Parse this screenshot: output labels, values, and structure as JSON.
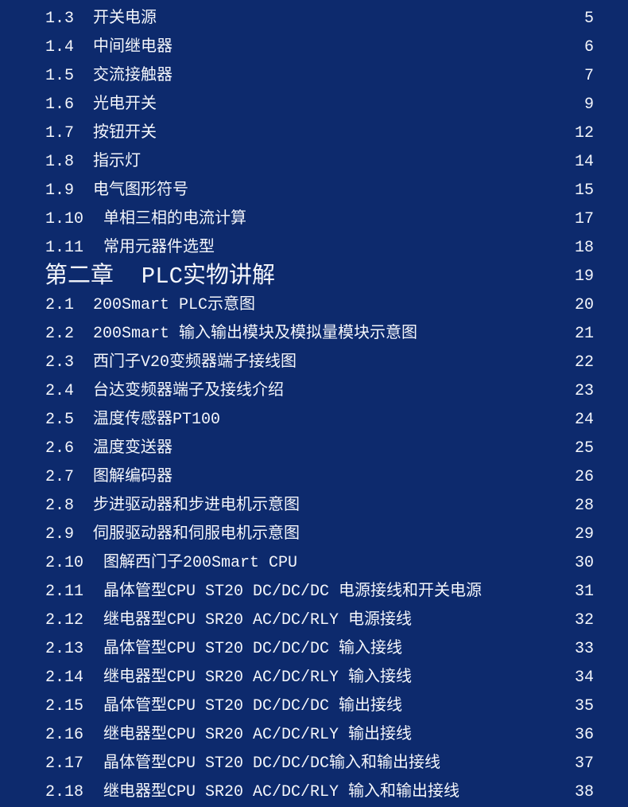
{
  "background_color": "#0d2a6d",
  "text_color": "#f4f6fb",
  "entries": [
    {
      "number": "1.3",
      "title": "开关电源",
      "page": "5"
    },
    {
      "number": "1.4",
      "title": "中间继电器",
      "page": "6"
    },
    {
      "number": "1.5",
      "title": "交流接触器",
      "page": "7"
    },
    {
      "number": "1.6",
      "title": "光电开关",
      "page": "9"
    },
    {
      "number": "1.7",
      "title": "按钮开关",
      "page": "12"
    },
    {
      "number": "1.8",
      "title": "指示灯",
      "page": "14"
    },
    {
      "number": "1.9",
      "title": "电气图形符号",
      "page": "15"
    },
    {
      "number": "1.10",
      "title": "单相三相的电流计算",
      "page": "17"
    },
    {
      "number": "1.11",
      "title": "常用元器件选型",
      "page": "18"
    },
    {
      "number": "第二章  PLC实物讲解",
      "title": "",
      "page": "19",
      "chapter": true
    },
    {
      "number": "2.1",
      "title": "200Smart PLC示意图",
      "page": "20"
    },
    {
      "number": "2.2",
      "title": "200Smart 输入输出模块及模拟量模块示意图",
      "page": "21"
    },
    {
      "number": "2.3",
      "title": "西门子V20变频器端子接线图",
      "page": "22"
    },
    {
      "number": "2.4",
      "title": "台达变频器端子及接线介绍",
      "page": "23"
    },
    {
      "number": "2.5",
      "title": "温度传感器PT100",
      "page": "24"
    },
    {
      "number": "2.6",
      "title": "温度变送器",
      "page": "25"
    },
    {
      "number": "2.7",
      "title": "图解编码器",
      "page": "26"
    },
    {
      "number": "2.8",
      "title": "步进驱动器和步进电机示意图",
      "page": "28"
    },
    {
      "number": "2.9",
      "title": "伺服驱动器和伺服电机示意图",
      "page": "29"
    },
    {
      "number": "2.10",
      "title": "图解西门子200Smart CPU",
      "page": "30"
    },
    {
      "number": "2.11",
      "title": "晶体管型CPU ST20 DC/DC/DC 电源接线和开关电源",
      "page": "31"
    },
    {
      "number": "2.12",
      "title": "继电器型CPU SR20 AC/DC/RLY 电源接线",
      "page": "32"
    },
    {
      "number": "2.13",
      "title": "晶体管型CPU ST20 DC/DC/DC 输入接线",
      "page": "33"
    },
    {
      "number": "2.14",
      "title": "继电器型CPU SR20 AC/DC/RLY 输入接线",
      "page": "34"
    },
    {
      "number": "2.15",
      "title": "晶体管型CPU ST20 DC/DC/DC 输出接线",
      "page": "35"
    },
    {
      "number": "2.16",
      "title": "继电器型CPU SR20 AC/DC/RLY 输出接线",
      "page": "36"
    },
    {
      "number": "2.17",
      "title": "晶体管型CPU ST20 DC/DC/DC输入和输出接线",
      "page": "37"
    },
    {
      "number": "2.18",
      "title": "继电器型CPU SR20 AC/DC/RLY 输入和输出接线",
      "page": "38"
    }
  ]
}
